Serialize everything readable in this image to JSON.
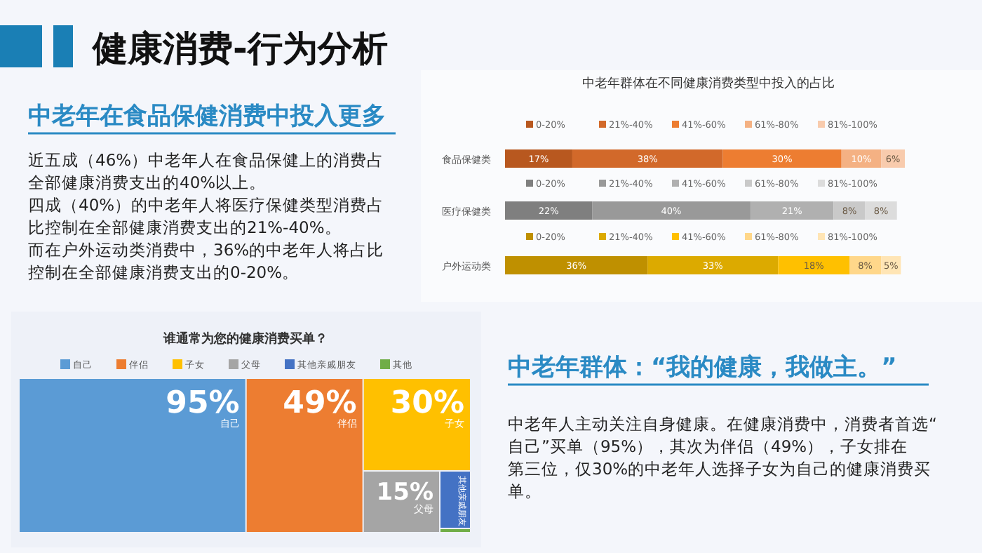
{
  "chart_data": [
    {
      "type": "other",
      "title": "健康消费-行为分析",
      "annotations": [
        "中老年在食品保健消费中投入更多",
        "近五成（46%）中老年人在食品保健上的消费占全部健康消费支出的40%以上。",
        "四成（40%）的中老年人将医疗保健类型消费占比控制在全部健康消费支出的21%-40%。",
        "而在户外运动类消费中，36%的中老年人将占比控制在全部健康消费支出的0-20%。"
      ]
    },
    {
      "type": "bar",
      "title": "中老年群体在不同健康消费类型中投入的占比",
      "orientation": "horizontal",
      "stacked": true,
      "legend": "top",
      "categories": [
        "食品保健类",
        "医疗保健类",
        "户外运动类"
      ],
      "series": [
        {
          "name": "0-20%",
          "colors": [
            "#b8581f",
            "#7f7f7f",
            "#bf9000"
          ],
          "values": [
            17,
            22,
            36
          ],
          "value_labels": [
            "17%",
            "22%",
            "36%"
          ]
        },
        {
          "name": "21%-40%",
          "colors": [
            "#d2692a",
            "#999999",
            "#dcaa00"
          ],
          "values": [
            38,
            40,
            33
          ],
          "value_labels": [
            "38%",
            "40%",
            "33%"
          ]
        },
        {
          "name": "41%-60%",
          "colors": [
            "#ed7d31",
            "#b0b0b0",
            "#ffc000"
          ],
          "values": [
            30,
            21,
            18
          ],
          "value_labels": [
            "30%",
            "21%",
            "18%"
          ]
        },
        {
          "name": "61%-80%",
          "colors": [
            "#f4b183",
            "#c9c9c9",
            "#ffd78a"
          ],
          "values": [
            10,
            8,
            8
          ],
          "value_labels": [
            "10%",
            "8%",
            "8%"
          ]
        },
        {
          "name": "81%-100%",
          "colors": [
            "#f8cbad",
            "#dcdcdc",
            "#ffe5b5"
          ],
          "values": [
            6,
            8,
            5
          ],
          "value_labels": [
            "6%",
            "8%",
            "5%"
          ]
        }
      ]
    },
    {
      "type": "other",
      "title": "谁通常为您的健康消费买单？",
      "categories": [
        "自己",
        "伴侣",
        "子女",
        "父母",
        "其他亲戚朋友",
        "其他"
      ],
      "values": [
        95,
        49,
        30,
        15,
        null,
        null
      ],
      "value_labels": [
        "95%",
        "49%",
        "30%",
        "15%",
        null,
        null
      ],
      "colors": [
        "#5b9bd5",
        "#ed7d31",
        "#ffc000",
        "#a5a5a5",
        "#4472c4",
        "#70ad47"
      ]
    },
    {
      "type": "other",
      "annotations": [
        "中老年群体：“我的健康，我做主。”",
        "中老年人主动关注自身健康。在健康消费中，消费者首选“自己”买单（95%），其次为伴侣（49%），子女排在第三位，仅30%的中老年人选择子女为自己的健康消费买单。"
      ]
    }
  ]
}
